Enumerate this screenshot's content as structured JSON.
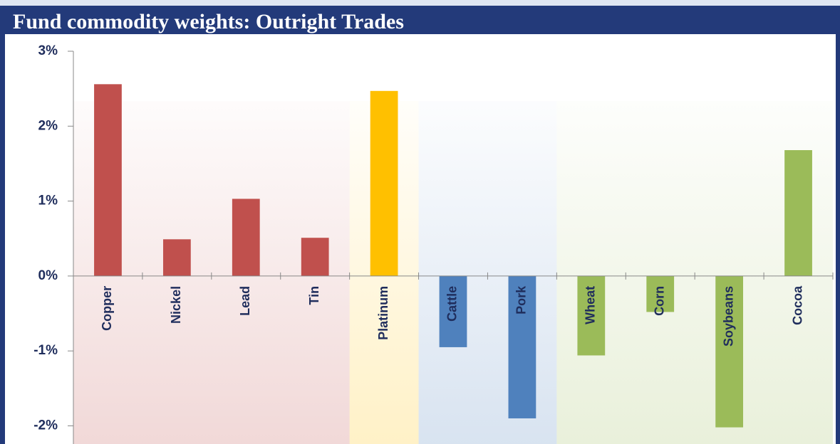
{
  "chart_data": {
    "type": "bar",
    "title": "Fund commodity weights: Outright Trades",
    "categories": [
      "Copper",
      "Nickel",
      "Lead",
      "Tin",
      "Platinum",
      "Cattle",
      "Pork",
      "Wheat",
      "Corn",
      "Soybeans",
      "Cocoa"
    ],
    "values": [
      2.56,
      0.49,
      1.03,
      0.51,
      2.47,
      -0.95,
      -1.9,
      -1.06,
      -0.48,
      -2.02,
      1.68
    ],
    "colors": [
      "#c0504d",
      "#c0504d",
      "#c0504d",
      "#c0504d",
      "#ffc000",
      "#4f81bd",
      "#4f81bd",
      "#9bbb59",
      "#9bbb59",
      "#9bbb59",
      "#9bbb59"
    ],
    "ylim": [
      -2.25,
      3
    ],
    "yticks": [
      {
        "value": -2,
        "label": "-2%"
      },
      {
        "value": -1,
        "label": "-1%"
      },
      {
        "value": 0,
        "label": "0%"
      },
      {
        "value": 1,
        "label": "1%"
      },
      {
        "value": 2,
        "label": "2%"
      },
      {
        "value": 3,
        "label": "3%"
      }
    ]
  }
}
